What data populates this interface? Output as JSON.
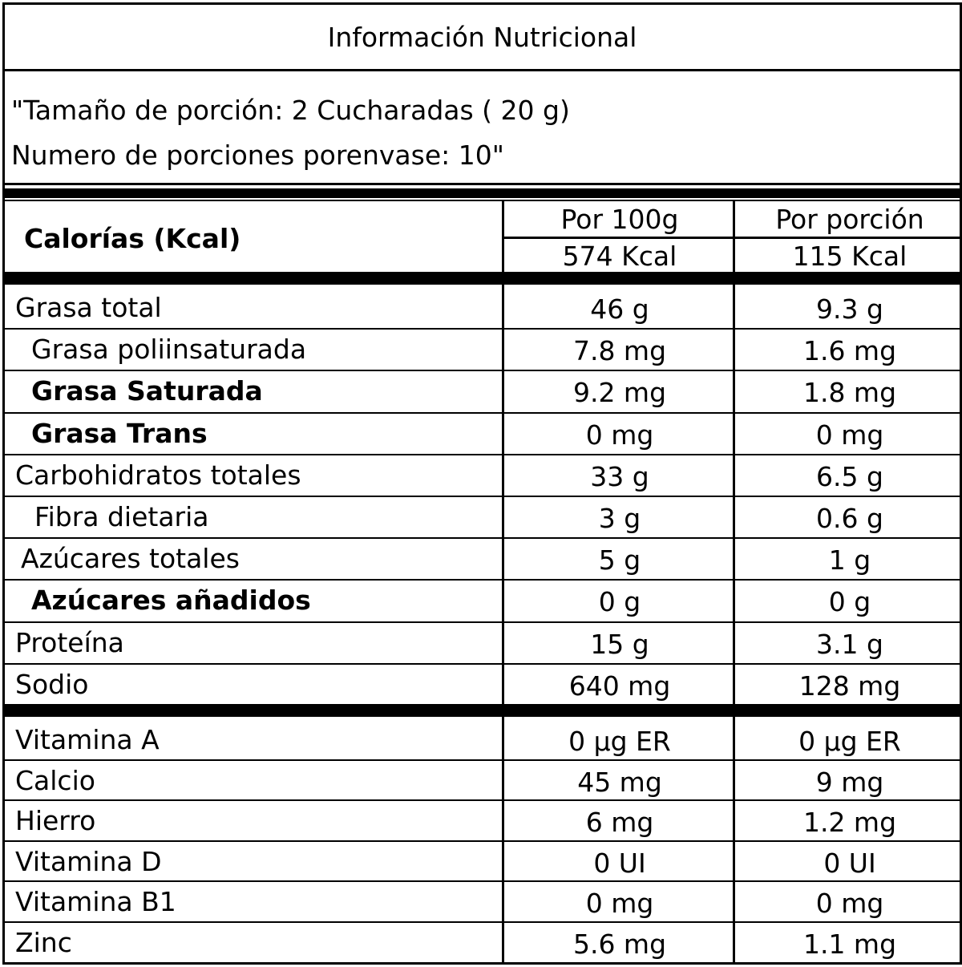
{
  "title": "Información Nutricional",
  "serving": {
    "line1": "\"Tamaño de porción: 2 Cucharadas ( 20 g)",
    "line2": "Numero de porciones porenvase: 10\""
  },
  "header": {
    "calories_label": "Calorías (Kcal)",
    "col1_title": "Por 100g",
    "col1_kcal": "574 Kcal",
    "col2_title": "Por porción",
    "col2_kcal": "115 Kcal"
  },
  "nutrients": [
    {
      "name": "Grasa total",
      "per100": "46 g",
      "perPortion": "9.3 g",
      "bold": false,
      "indent": 0
    },
    {
      "name": "Grasa poliinsaturada",
      "per100": "7.8 mg",
      "perPortion": "1.6 mg",
      "bold": false,
      "indent": 1
    },
    {
      "name": "Grasa Saturada",
      "per100": "9.2 mg",
      "perPortion": "1.8 mg",
      "bold": true,
      "indent": 1
    },
    {
      "name": "Grasa Trans",
      "per100": "0 mg",
      "perPortion": "0 mg",
      "bold": true,
      "indent": 1
    },
    {
      "name": "Carbohidratos totales",
      "per100": "33 g",
      "perPortion": "6.5 g",
      "bold": false,
      "indent": 0
    },
    {
      "name": "Fibra dietaria",
      "per100": "3 g",
      "perPortion": "0.6 g",
      "bold": false,
      "indent": 2
    },
    {
      "name": "Azúcares totales",
      "per100": "5 g",
      "perPortion": "1 g",
      "bold": false,
      "indent": 3
    },
    {
      "name": "Azúcares añadidos",
      "per100": "0 g",
      "perPortion": "0 g",
      "bold": true,
      "indent": 1
    },
    {
      "name": "Proteína",
      "per100": "15 g",
      "perPortion": "3.1 g",
      "bold": false,
      "indent": 0
    },
    {
      "name": "Sodio",
      "per100": "640 mg",
      "perPortion": "128 mg",
      "bold": false,
      "indent": 0
    }
  ],
  "vitamins": [
    {
      "name": "Vitamina A",
      "per100": "0 µg ER",
      "perPortion": "0 µg ER"
    },
    {
      "name": "Calcio",
      "per100": "45 mg",
      "perPortion": "9 mg"
    },
    {
      "name": "Hierro",
      "per100": "6 mg",
      "perPortion": "1.2 mg"
    },
    {
      "name": "Vitamina D",
      "per100": "0 UI",
      "perPortion": "0 UI"
    },
    {
      "name": "Vitamina B1",
      "per100": "0 mg",
      "perPortion": "0 mg"
    },
    {
      "name": "Zinc",
      "per100": "5.6 mg",
      "perPortion": "1.1 mg"
    }
  ]
}
